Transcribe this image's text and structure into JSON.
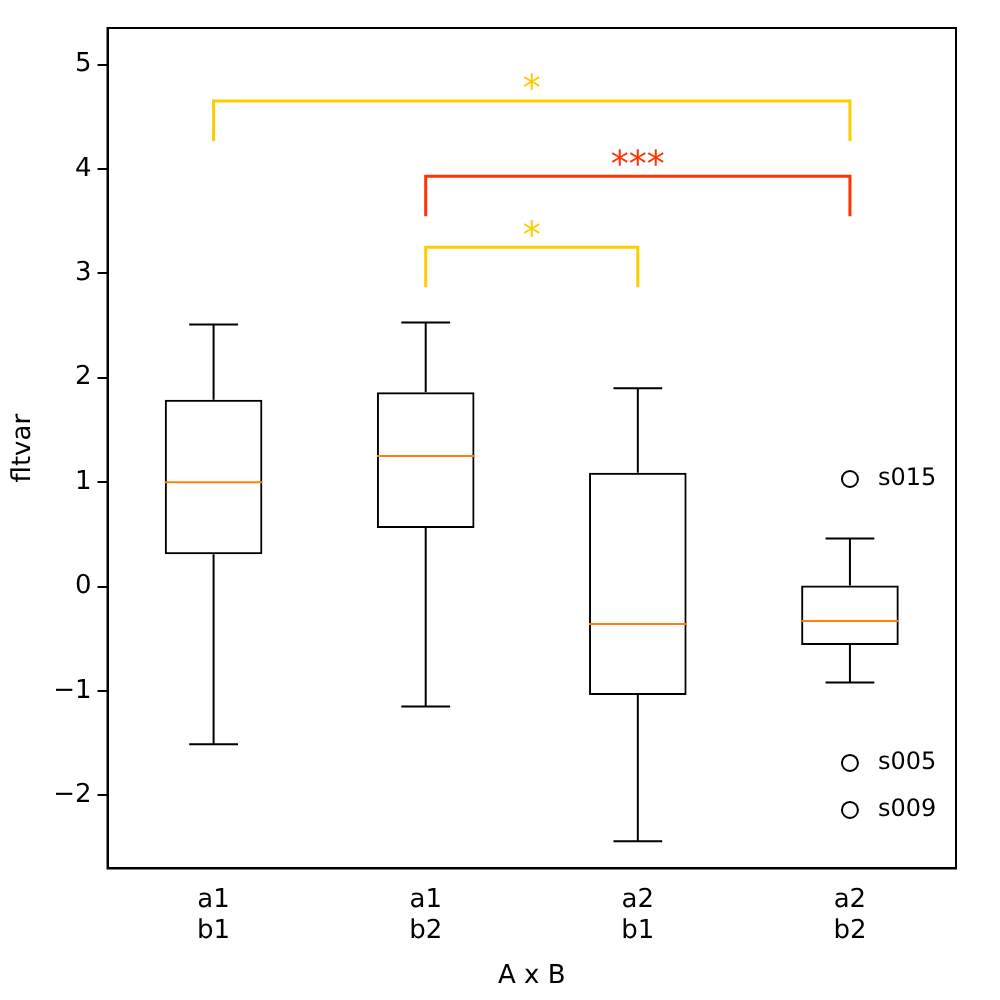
{
  "chart_data": {
    "type": "box",
    "xlabel": "A x B",
    "ylabel": "fltvar",
    "categories": [
      "a1\nb1",
      "a1\nb2",
      "a2\nb1",
      "a2\nb2"
    ],
    "boxes": [
      {
        "low": -1.51,
        "q1": 0.31,
        "median": 1.0,
        "q3": 1.79,
        "high": 2.51
      },
      {
        "low": -1.15,
        "q1": 0.56,
        "median": 1.25,
        "q3": 1.86,
        "high": 2.53
      },
      {
        "low": -2.44,
        "q1": -1.04,
        "median": -0.36,
        "q3": 1.09,
        "high": 1.9
      },
      {
        "low": -0.92,
        "q1": -0.56,
        "median": -0.33,
        "q3": 0.01,
        "high": 0.46,
        "outliers": [
          1.03,
          -1.69,
          -2.14
        ]
      }
    ],
    "ylim": [
      -2.7,
      5.35
    ],
    "yticks": [
      {
        "value": -2,
        "label": "−2"
      },
      {
        "value": -1,
        "label": "−1"
      },
      0,
      1,
      2,
      3,
      4,
      5
    ],
    "grid": false,
    "legend": false,
    "annotations": [
      "*",
      "***",
      "*",
      "s015",
      "s005",
      "s009"
    ]
  }
}
